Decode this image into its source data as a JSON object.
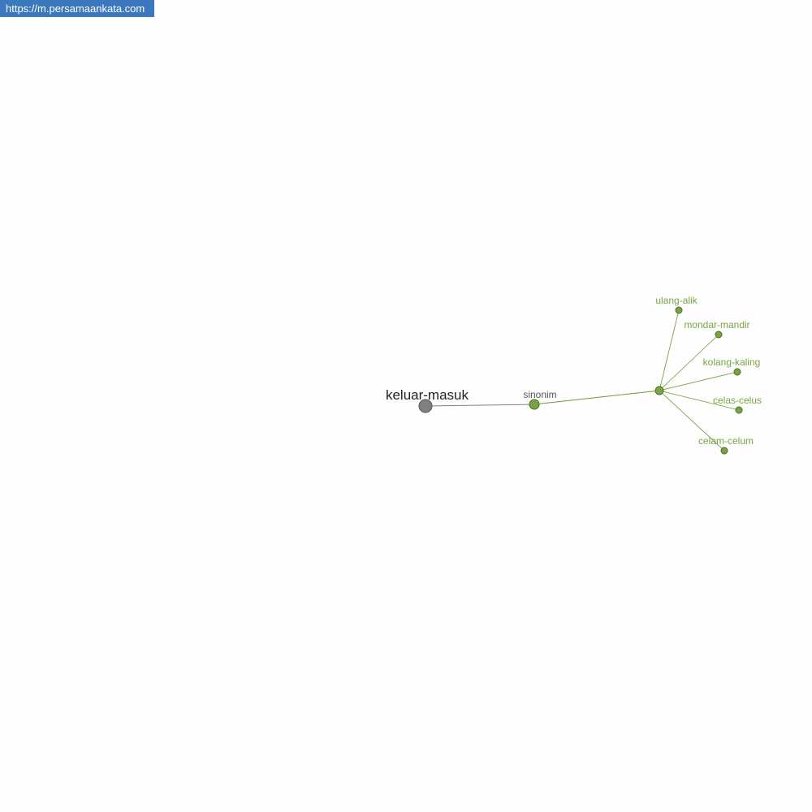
{
  "site_badge": "https://m.persamaankata.com",
  "graph": {
    "root": "keluar-masuk",
    "relation": "sinonim",
    "synonyms": [
      "ulang-alik",
      "mondar-mandir",
      "kolang-kaling",
      "celas-celus",
      "celam-celum"
    ],
    "colors": {
      "root_node": "#808080",
      "relation_node": "#7aa444",
      "edge_root": "#808080",
      "edge_green": "#6b9a2e",
      "label_green": "#7aa444"
    }
  }
}
